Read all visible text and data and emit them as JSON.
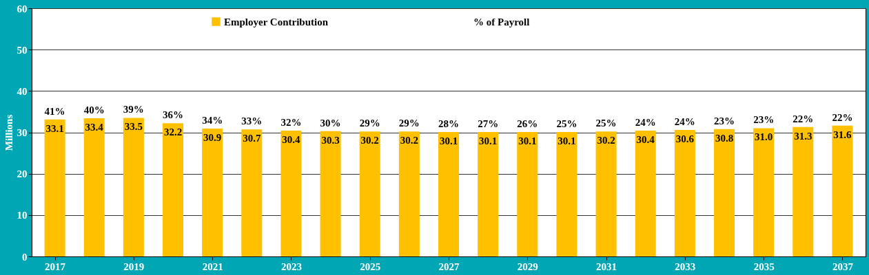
{
  "chart_data": {
    "type": "bar",
    "ylabel": "Millions",
    "x": [
      2017,
      2018,
      2019,
      2020,
      2021,
      2022,
      2023,
      2024,
      2025,
      2026,
      2027,
      2028,
      2029,
      2030,
      2031,
      2032,
      2033,
      2034,
      2035,
      2036,
      2037
    ],
    "xlim": [
      2016.5,
      2037.5
    ],
    "xticks": [
      2017,
      2019,
      2021,
      2023,
      2025,
      2027,
      2029,
      2031,
      2033,
      2035,
      2037
    ],
    "ylim": [
      0,
      60
    ],
    "yticks": [
      0,
      10,
      20,
      30,
      40,
      50,
      60
    ],
    "grid": "y",
    "legend": "top",
    "series": [
      {
        "name": "Employer Contribution",
        "color": "#ffc000",
        "values": [
          33.1,
          33.4,
          33.5,
          32.2,
          30.9,
          30.7,
          30.4,
          30.3,
          30.2,
          30.2,
          30.1,
          30.1,
          30.1,
          30.1,
          30.2,
          30.4,
          30.6,
          30.8,
          31.0,
          31.3,
          31.6
        ],
        "value_labels": [
          "33.1",
          "33.4",
          "33.5",
          "32.2",
          "30.9",
          "30.7",
          "30.4",
          "30.3",
          "30.2",
          "30.2",
          "30.1",
          "30.1",
          "30.1",
          "30.1",
          "30.2",
          "30.4",
          "30.6",
          "30.8",
          "31.0",
          "31.3",
          "31.6"
        ]
      },
      {
        "name": "% of Payroll",
        "type": "line",
        "values": [
          null,
          null,
          null,
          null,
          null,
          null,
          null,
          null,
          null,
          null,
          null,
          null,
          null,
          null,
          null,
          null,
          null,
          null,
          null,
          null,
          null
        ]
      }
    ],
    "annotations": [
      {
        "text": "41%",
        "x": 2017,
        "y": 33.1
      },
      {
        "text": "40%",
        "x": 2018,
        "y": 33.4
      },
      {
        "text": "39%",
        "x": 2019,
        "y": 33.5
      },
      {
        "text": "36%",
        "x": 2020,
        "y": 32.2
      },
      {
        "text": "34%",
        "x": 2021,
        "y": 30.9
      },
      {
        "text": "33%",
        "x": 2022,
        "y": 30.7
      },
      {
        "text": "32%",
        "x": 2023,
        "y": 30.4
      },
      {
        "text": "30%",
        "x": 2024,
        "y": 30.3
      },
      {
        "text": "29%",
        "x": 2025,
        "y": 30.2
      },
      {
        "text": "29%",
        "x": 2026,
        "y": 30.2
      },
      {
        "text": "28%",
        "x": 2027,
        "y": 30.1
      },
      {
        "text": "27%",
        "x": 2028,
        "y": 30.1
      },
      {
        "text": "26%",
        "x": 2029,
        "y": 30.1
      },
      {
        "text": "25%",
        "x": 2030,
        "y": 30.1
      },
      {
        "text": "25%",
        "x": 2031,
        "y": 30.2
      },
      {
        "text": "24%",
        "x": 2032,
        "y": 30.4
      },
      {
        "text": "24%",
        "x": 2033,
        "y": 30.6
      },
      {
        "text": "23%",
        "x": 2034,
        "y": 30.8
      },
      {
        "text": "23%",
        "x": 2035,
        "y": 31.0
      },
      {
        "text": "22%",
        "x": 2036,
        "y": 31.3
      },
      {
        "text": "22%",
        "x": 2037,
        "y": 31.6
      }
    ]
  }
}
